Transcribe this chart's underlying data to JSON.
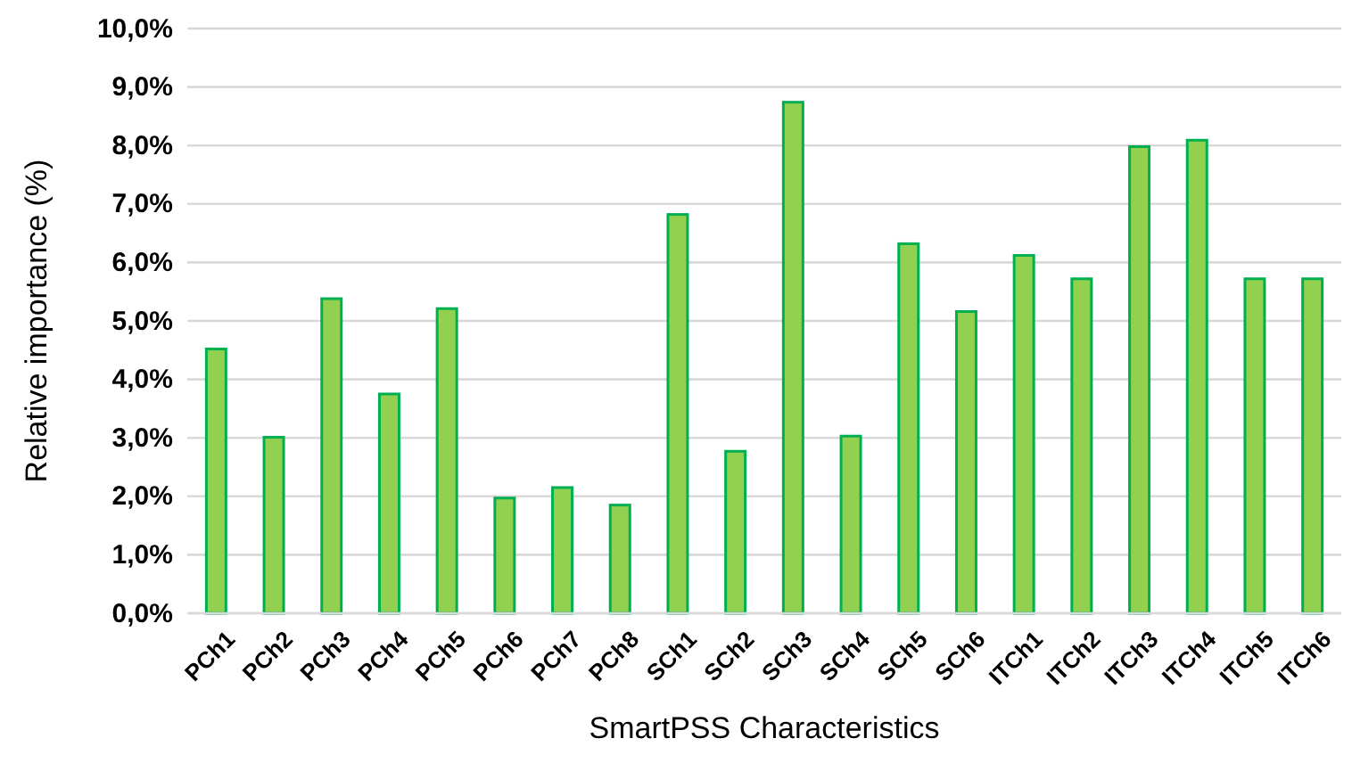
{
  "chart_data": {
    "type": "bar",
    "xlabel": "SmartPSS Characteristics",
    "ylabel": "Relative importance (%)",
    "categories": [
      "PCh1",
      "PCh2",
      "PCh3",
      "PCh4",
      "PCh5",
      "PCh6",
      "PCh7",
      "PCh8",
      "SCh1",
      "SCh2",
      "SCh3",
      "SCh4",
      "SCh5",
      "SCh6",
      "ITCh1",
      "ITCh2",
      "ITCh3",
      "ITCh4",
      "ITCh5",
      "ITCh6"
    ],
    "values": [
      4.52,
      3.01,
      5.38,
      3.75,
      5.21,
      1.97,
      2.15,
      1.85,
      6.82,
      2.77,
      8.74,
      3.03,
      6.32,
      5.16,
      6.12,
      5.72,
      7.98,
      8.09,
      5.72,
      5.72
    ],
    "color": "#92d050",
    "ylim": [
      0,
      10
    ],
    "yticks": [
      {
        "value": 0,
        "label": "0,0%"
      },
      {
        "value": 1,
        "label": "1,0%"
      },
      {
        "value": 2,
        "label": "2,0%"
      },
      {
        "value": 3,
        "label": "3,0%"
      },
      {
        "value": 4,
        "label": "4,0%"
      },
      {
        "value": 5,
        "label": "5,0%"
      },
      {
        "value": 6,
        "label": "6,0%"
      },
      {
        "value": 7,
        "label": "7,0%"
      },
      {
        "value": 8,
        "label": "8,0%"
      },
      {
        "value": 9,
        "label": "9,0%"
      },
      {
        "value": 10,
        "label": "10,0%"
      }
    ],
    "grid": "y"
  }
}
